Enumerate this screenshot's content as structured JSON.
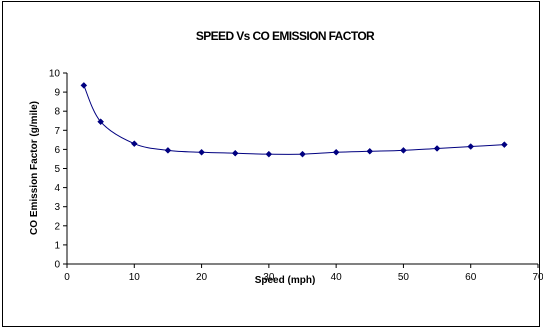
{
  "chart_data": {
    "type": "line",
    "title": "SPEED Vs CO EMISSION FACTOR",
    "xlabel": "Speed (mph)",
    "ylabel": "CO Emission Factor (g/mile)",
    "xlim": [
      0,
      70
    ],
    "ylim": [
      0,
      10
    ],
    "xticks": [
      0,
      10,
      20,
      30,
      40,
      50,
      60,
      70
    ],
    "yticks": [
      0,
      1,
      2,
      3,
      4,
      5,
      6,
      7,
      8,
      9,
      10
    ],
    "grid": false,
    "legend": "none",
    "series": [
      {
        "color": "#000080",
        "marker": "diamond",
        "x": [
          2.5,
          5,
          10,
          15,
          20,
          25,
          30,
          35,
          40,
          45,
          50,
          55,
          60,
          65
        ],
        "y": [
          9.35,
          7.45,
          6.3,
          5.95,
          5.85,
          5.8,
          5.75,
          5.75,
          5.85,
          5.9,
          5.95,
          6.05,
          6.15,
          6.25
        ]
      }
    ]
  }
}
